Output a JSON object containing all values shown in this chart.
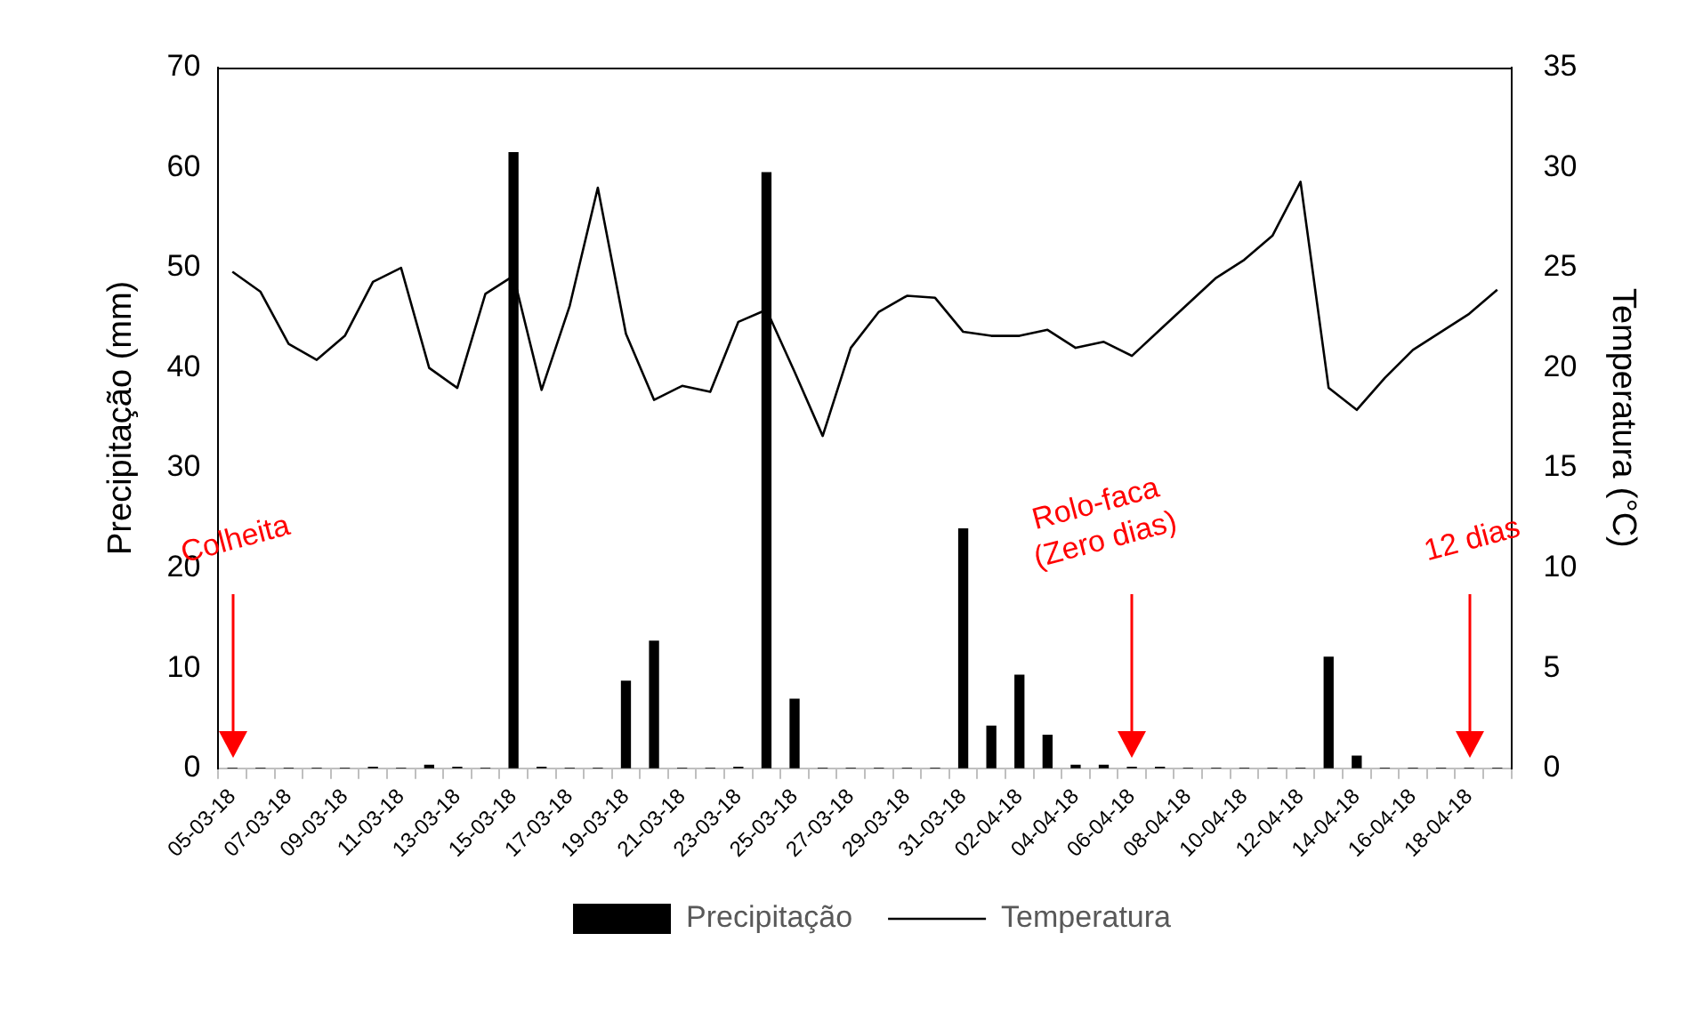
{
  "chart_data": {
    "type": "bar",
    "categories": [
      "05-03-18",
      null,
      "07-03-18",
      null,
      "09-03-18",
      null,
      "11-03-18",
      null,
      "13-03-18",
      null,
      "15-03-18",
      null,
      "17-03-18",
      null,
      "19-03-18",
      null,
      "21-03-18",
      null,
      "23-03-18",
      null,
      "25-03-18",
      null,
      "27-03-18",
      null,
      "29-03-18",
      null,
      "31-03-18",
      null,
      "02-04-18",
      null,
      "04-04-18",
      null,
      "06-04-18",
      null,
      "08-04-18",
      null,
      "10-04-18",
      null,
      "12-04-18",
      null,
      "14-04-18",
      null,
      "16-04-18",
      null,
      "18-04-18",
      null
    ],
    "series": [
      {
        "name": "Precipitação",
        "type": "bar",
        "color": "#000000",
        "values": [
          0,
          0,
          0,
          0,
          0,
          0.1,
          0,
          0.3,
          0.1,
          0,
          61.5,
          0.1,
          0,
          0,
          8.7,
          12.7,
          0,
          0,
          0.1,
          59.5,
          6.9,
          0,
          0,
          0,
          0,
          0,
          23.9,
          4.2,
          9.3,
          3.3,
          0.3,
          0.3,
          0.1,
          0.1,
          0,
          0,
          0,
          0,
          0,
          11.1,
          1.2,
          0,
          0,
          0,
          0,
          0
        ]
      },
      {
        "name": "Temperatura",
        "type": "line",
        "axis": "y2",
        "color": "#000000",
        "values": [
          24.8,
          23.8,
          21.2,
          20.4,
          21.6,
          24.3,
          25.0,
          20.0,
          19.0,
          23.7,
          24.6,
          18.9,
          23.1,
          29.0,
          21.7,
          18.4,
          19.1,
          18.8,
          22.3,
          22.9,
          19.8,
          16.6,
          21.0,
          22.8,
          23.6,
          23.5,
          21.8,
          21.6,
          21.6,
          21.9,
          21.0,
          21.3,
          20.6,
          21.9,
          23.2,
          24.5,
          25.4,
          26.6,
          29.3,
          19.0,
          17.9,
          19.5,
          20.9,
          21.8,
          22.7,
          23.9
        ]
      }
    ],
    "ylabel": "Precipitação (mm)",
    "y2label": "Temperatura (°C)",
    "ylim": [
      0,
      70
    ],
    "yticks": [
      0,
      10,
      20,
      30,
      40,
      50,
      60,
      70
    ],
    "y2lim": [
      0,
      35
    ],
    "y2ticks": [
      0,
      5,
      10,
      15,
      20,
      25,
      30,
      35
    ],
    "ref_lines": [
      {
        "axis": "x",
        "value": "05-03-18",
        "label": "Colheita",
        "color": "#ff0000"
      },
      {
        "axis": "x",
        "value": "06-04-18",
        "label": "Rolo-faca (Zero dias)",
        "color": "#ff0000"
      },
      {
        "axis": "x",
        "value": "18-04-18",
        "label": "12 dias",
        "color": "#ff0000"
      }
    ],
    "grid": false,
    "legend": "bottom",
    "marker": "none",
    "line_style": "solid"
  }
}
